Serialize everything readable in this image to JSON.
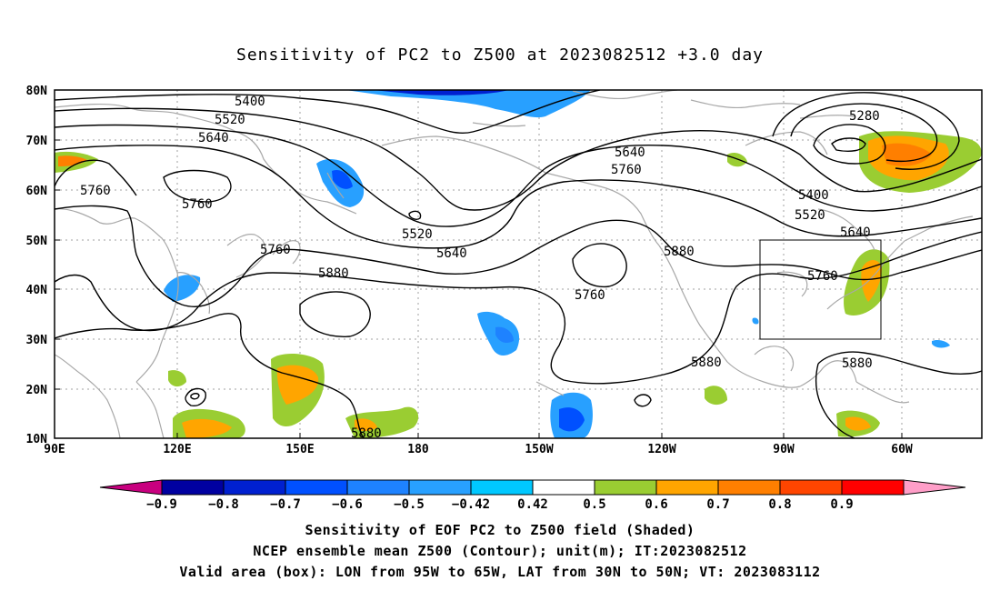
{
  "title": "Sensitivity of PC2 to Z500 at 2023082512 +3.0 day",
  "map": {
    "lat_labels": [
      "80N",
      "70N",
      "60N",
      "50N",
      "40N",
      "30N",
      "20N",
      "10N"
    ],
    "lon_labels": [
      "90E",
      "120E",
      "150E",
      "180",
      "150W",
      "120W",
      "90W",
      "60W"
    ],
    "contour_labels": [
      "5400",
      "5520",
      "5640",
      "5280",
      "5640",
      "5760",
      "5760",
      "5400",
      "5520",
      "5640",
      "5760",
      "5880",
      "5520",
      "5640",
      "5760",
      "5760",
      "5880",
      "5880",
      "5880",
      "5880"
    ],
    "valid_box": {
      "lon_west": "95W",
      "lon_east": "65W",
      "lat_south": "30N",
      "lat_north": "50N"
    }
  },
  "colorbar": {
    "labels": [
      "-0.9",
      "-0.8",
      "-0.7",
      "-0.6",
      "-0.5",
      "-0.42",
      "0.42",
      "0.5",
      "0.6",
      "0.7",
      "0.8",
      "0.9"
    ],
    "colors": [
      "#c8007f",
      "#0000a0",
      "#0020d0",
      "#0050ff",
      "#1e82ff",
      "#28a0ff",
      "#00c8ff",
      "#ffffff",
      "#9acd32",
      "#ffa500",
      "#ff7f00",
      "#ff4500",
      "#ff0000",
      "#ff9ec8"
    ]
  },
  "captions": {
    "line1": "Sensitivity of EOF PC2 to Z500 field (Shaded)",
    "line2": "NCEP ensemble mean Z500 (Contour); unit(m); IT:2023082512",
    "line3": "Valid area (box): LON from 95W to 65W, LAT from 30N to 50N; VT: 2023083112"
  }
}
